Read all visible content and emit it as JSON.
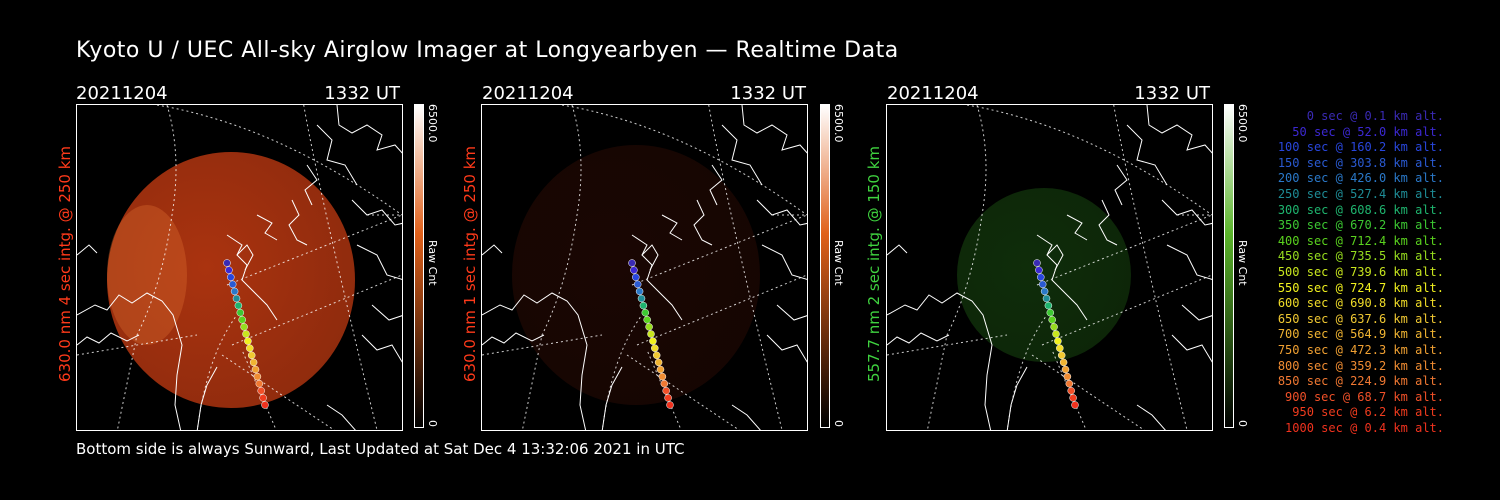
{
  "title": "Kyoto U / UEC All-sky Airglow Imager at Longyearbyen — Realtime Data",
  "footer": "Bottom side is always Sunward, Last Updated at Sat Dec  4 13:32:06 2021 in UTC",
  "panels": [
    {
      "date": "20211204",
      "time": "1332 UT",
      "side_label": "630.0 nm 4 sec intg. @ 250 km",
      "label_color": "#ff3a1a",
      "colorbar_max": "6500.0",
      "colorbar_min": "0",
      "colorbar_unit": "Raw Cnt",
      "glow_color": "#c83c12",
      "glow_level": 0.85
    },
    {
      "date": "20211204",
      "time": "1332 UT",
      "side_label": "630.0 nm 1 sec intg. @ 250 km",
      "label_color": "#ff3a1a",
      "colorbar_max": "6500.0",
      "colorbar_min": "0",
      "colorbar_unit": "Raw Cnt",
      "glow_color": "#4a1208",
      "glow_level": 0.35
    },
    {
      "date": "20211204",
      "time": "1332 UT",
      "side_label": "557.7 nm 2 sec intg. @ 150 km",
      "label_color": "#3fd23f",
      "colorbar_max": "6500.0",
      "colorbar_min": "0",
      "colorbar_unit": "Raw Cnt",
      "glow_color": "#1e5a14",
      "glow_level": 0.5
    }
  ],
  "colorbar_colors": {
    "red_top": "#ffffff",
    "red_mid": "#e0601a",
    "red_bottom": "#000000",
    "green_top": "#ffffff",
    "green_mid": "#5ab42a",
    "green_bottom": "#000000"
  },
  "trajectory": [
    {
      "sec": "0 sec",
      "alt": "0.1 km alt.",
      "color": "#3a2ab4"
    },
    {
      "sec": "50 sec",
      "alt": "52.0 km alt.",
      "color": "#3c28d2"
    },
    {
      "sec": "100 sec",
      "alt": "160.2 km alt.",
      "color": "#2846dc"
    },
    {
      "sec": "150 sec",
      "alt": "303.8 km alt.",
      "color": "#2a5ad2"
    },
    {
      "sec": "200 sec",
      "alt": "426.0 km alt.",
      "color": "#2a78c8"
    },
    {
      "sec": "250 sec",
      "alt": "527.4 km alt.",
      "color": "#1e8c96"
    },
    {
      "sec": "300 sec",
      "alt": "608.6 km alt.",
      "color": "#1eb46e"
    },
    {
      "sec": "350 sec",
      "alt": "670.2 km alt.",
      "color": "#3cc832"
    },
    {
      "sec": "400 sec",
      "alt": "712.4 km alt.",
      "color": "#5ad21e"
    },
    {
      "sec": "450 sec",
      "alt": "735.5 km alt.",
      "color": "#96dc1e"
    },
    {
      "sec": "500 sec",
      "alt": "739.6 km alt.",
      "color": "#c8e61e"
    },
    {
      "sec": "550 sec",
      "alt": "724.7 km alt.",
      "color": "#f0f01e"
    },
    {
      "sec": "600 sec",
      "alt": "690.8 km alt.",
      "color": "#f0dc28"
    },
    {
      "sec": "650 sec",
      "alt": "637.6 km alt.",
      "color": "#f0c832"
    },
    {
      "sec": "700 sec",
      "alt": "564.9 km alt.",
      "color": "#f0b432"
    },
    {
      "sec": "750 sec",
      "alt": "472.3 km alt.",
      "color": "#f0a032"
    },
    {
      "sec": "800 sec",
      "alt": "359.2 km alt.",
      "color": "#f08c32"
    },
    {
      "sec": "850 sec",
      "alt": "224.9 km alt.",
      "color": "#f07832"
    },
    {
      "sec": "900 sec",
      "alt": "68.7 km alt.",
      "color": "#f05028"
    },
    {
      "sec": "950 sec",
      "alt": "6.2 km alt.",
      "color": "#f03c1e"
    },
    {
      "sec": "1000 sec",
      "alt": "0.4 km alt.",
      "color": "#f0321e"
    }
  ]
}
